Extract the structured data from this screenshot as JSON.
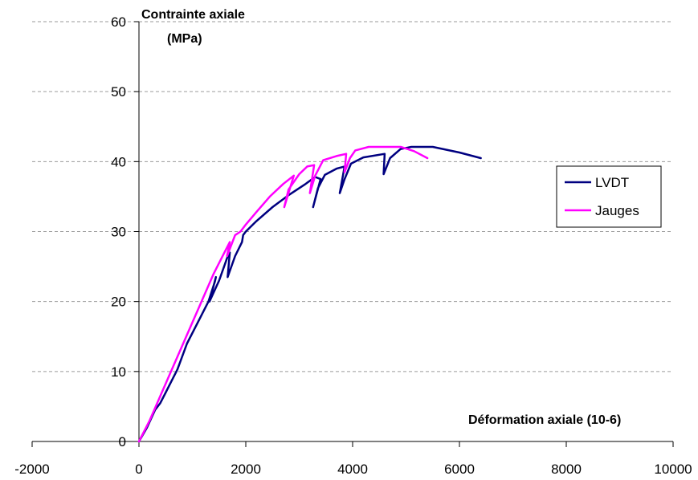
{
  "chart_data": {
    "type": "line",
    "xlabel": "Déformation axiale (10-6)",
    "ylabel_line1": "Contrainte axiale",
    "ylabel_line2": "(MPa)",
    "xlim": [
      -2000,
      10000
    ],
    "ylim": [
      0,
      60
    ],
    "x_ticks": [
      -2000,
      0,
      2000,
      4000,
      6000,
      8000,
      10000
    ],
    "y_ticks": [
      0,
      10,
      20,
      30,
      40,
      50,
      60
    ],
    "x_tick_labels": [
      "-2000",
      "0",
      "2000",
      "4000",
      "6000",
      "8000",
      "10000"
    ],
    "y_tick_labels": [
      "0",
      "10",
      "20",
      "30",
      "40",
      "50",
      "60"
    ],
    "grid": "horizontal dashed",
    "legend_position": "right",
    "series": [
      {
        "name": "LVDT",
        "color": "#000080",
        "points": [
          [
            0,
            0
          ],
          [
            150,
            2
          ],
          [
            300,
            4.5
          ],
          [
            400,
            5.5
          ],
          [
            500,
            7
          ],
          [
            600,
            8.5
          ],
          [
            700,
            10
          ],
          [
            720,
            10.3
          ],
          [
            900,
            14
          ],
          [
            1100,
            17
          ],
          [
            1300,
            20
          ],
          [
            1420,
            22.8
          ],
          [
            1440,
            23.5
          ],
          [
            1320,
            20
          ],
          [
            1500,
            23
          ],
          [
            1650,
            26.2
          ],
          [
            1700,
            27
          ],
          [
            1660,
            23.5
          ],
          [
            1800,
            26.5
          ],
          [
            1930,
            28.5
          ],
          [
            1950,
            29.5
          ],
          [
            2000,
            30
          ],
          [
            2200,
            31.5
          ],
          [
            2500,
            33.5
          ],
          [
            2800,
            35.2
          ],
          [
            3100,
            36.7
          ],
          [
            3300,
            37.8
          ],
          [
            3400,
            37.5
          ],
          [
            3260,
            33.5
          ],
          [
            3350,
            36.2
          ],
          [
            3480,
            38.1
          ],
          [
            3700,
            39
          ],
          [
            3850,
            39.3
          ],
          [
            3760,
            35.5
          ],
          [
            3850,
            37.5
          ],
          [
            3970,
            39.7
          ],
          [
            4200,
            40.6
          ],
          [
            4600,
            41.1
          ],
          [
            4580,
            38.2
          ],
          [
            4700,
            40.5
          ],
          [
            4900,
            41.8
          ],
          [
            5100,
            42.1
          ],
          [
            5500,
            42.1
          ],
          [
            6000,
            41.3
          ],
          [
            6400,
            40.5
          ]
        ]
      },
      {
        "name": "Jauges",
        "color": "#ff00ff",
        "points": [
          [
            0,
            0
          ],
          [
            200,
            3
          ],
          [
            400,
            6.5
          ],
          [
            600,
            10
          ],
          [
            800,
            13.5
          ],
          [
            1000,
            17
          ],
          [
            1200,
            20.5
          ],
          [
            1400,
            24
          ],
          [
            1600,
            27
          ],
          [
            1700,
            28.5
          ],
          [
            1650,
            26.5
          ],
          [
            1800,
            29.5
          ],
          [
            1900,
            30
          ],
          [
            2000,
            31
          ],
          [
            2200,
            32.8
          ],
          [
            2450,
            35
          ],
          [
            2700,
            36.8
          ],
          [
            2900,
            38
          ],
          [
            2720,
            33.5
          ],
          [
            2800,
            36
          ],
          [
            3000,
            38.2
          ],
          [
            3150,
            39.3
          ],
          [
            3280,
            39.5
          ],
          [
            3200,
            35.5
          ],
          [
            3300,
            38
          ],
          [
            3450,
            40.2
          ],
          [
            3700,
            40.8
          ],
          [
            3880,
            41.1
          ],
          [
            3850,
            38.5
          ],
          [
            3950,
            40.5
          ],
          [
            4050,
            41.6
          ],
          [
            4300,
            42.1
          ],
          [
            4900,
            42.1
          ],
          [
            5150,
            41.5
          ],
          [
            5400,
            40.5
          ]
        ]
      }
    ],
    "legend_entries": [
      "LVDT",
      "Jauges"
    ]
  }
}
